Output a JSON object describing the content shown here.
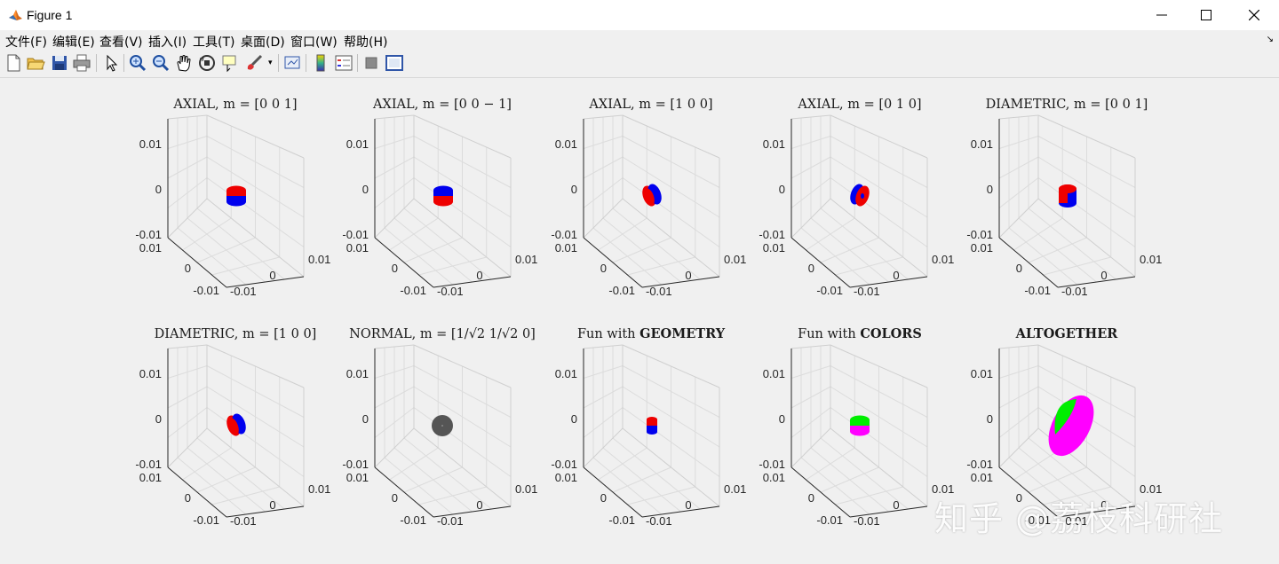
{
  "window": {
    "title": "Figure 1"
  },
  "menu": [
    {
      "label": "文件(F)"
    },
    {
      "label": "编辑(E)"
    },
    {
      "label": "查看(V)"
    },
    {
      "label": "插入(I)"
    },
    {
      "label": "工具(T)"
    },
    {
      "label": "桌面(D)"
    },
    {
      "label": "窗口(W)"
    },
    {
      "label": "帮助(H)"
    }
  ],
  "toolbar": [
    {
      "icon": "new-figure-icon"
    },
    {
      "icon": "open-file-icon"
    },
    {
      "icon": "save-icon"
    },
    {
      "icon": "print-icon"
    },
    {
      "icon": "select-arrow-icon"
    },
    {
      "icon": "zoom-in-icon"
    },
    {
      "icon": "zoom-out-icon"
    },
    {
      "icon": "pan-hand-icon"
    },
    {
      "icon": "rotate-3d-icon"
    },
    {
      "icon": "data-cursor-icon"
    },
    {
      "icon": "brush-icon"
    },
    {
      "icon": "link-plot-icon"
    },
    {
      "icon": "colorbar-icon"
    },
    {
      "icon": "legend-icon"
    },
    {
      "icon": "hide-plot-tools-icon"
    },
    {
      "icon": "show-plot-tools-icon"
    }
  ],
  "axis_ticks": {
    "top": "0.01",
    "mid": "0",
    "bottom": "-0.01"
  },
  "subplots": [
    {
      "title_plain": "AXIAL, ",
      "title_math": "m = [0   0   1]",
      "colors": [
        "#ee0000",
        "#0000ee"
      ],
      "shape": "cyl-v",
      "top": "red"
    },
    {
      "title_plain": "AXIAL, ",
      "title_math": "m = [0   0  − 1]",
      "colors": [
        "#0000ee",
        "#ee0000"
      ],
      "shape": "cyl-v",
      "top": "blue"
    },
    {
      "title_plain": "AXIAL, ",
      "title_math": "m = [1   0   0]",
      "colors": [
        "#ee0000",
        "#0000ee"
      ],
      "shape": "cyl-h",
      "top": "red"
    },
    {
      "title_plain": "AXIAL, ",
      "title_math": "m = [0   1   0]",
      "colors": [
        "#0000ee",
        "#ee0000"
      ],
      "shape": "cyl-h2",
      "top": "blue"
    },
    {
      "title_plain": "DIAMETRIC, ",
      "title_math": "m = [0   0   1]",
      "colors": [
        "#ee0000",
        "#0000ee"
      ],
      "shape": "cyl-tall",
      "top": "red"
    },
    {
      "title_plain": "DIAMETRIC, ",
      "title_math": "m = [1   0   0]",
      "colors": [
        "#ee0000",
        "#0000ee"
      ],
      "shape": "cyl-h",
      "top": "red"
    },
    {
      "title_plain": "NORMAL, ",
      "title_math": "m = [1/√2   1/√2   0]",
      "colors": [
        "#555555",
        "#555555"
      ],
      "shape": "blob",
      "top": "gray"
    },
    {
      "title_plain": "Fun with ",
      "title_math": "GEOMETRY",
      "colors": [
        "#ee0000",
        "#0000ee"
      ],
      "shape": "cyl-small",
      "top": "red"
    },
    {
      "title_plain": "Fun with ",
      "title_math": "COLORS",
      "colors": [
        "#00ee00",
        "#ff00ff"
      ],
      "shape": "cyl-v",
      "top": "green"
    },
    {
      "title_plain": "",
      "title_math": "ALTOGETHER",
      "colors": [
        "#00ee00",
        "#ff00ff"
      ],
      "shape": "disc",
      "top": "green"
    }
  ],
  "watermark": "知乎 @荔枝科研社"
}
